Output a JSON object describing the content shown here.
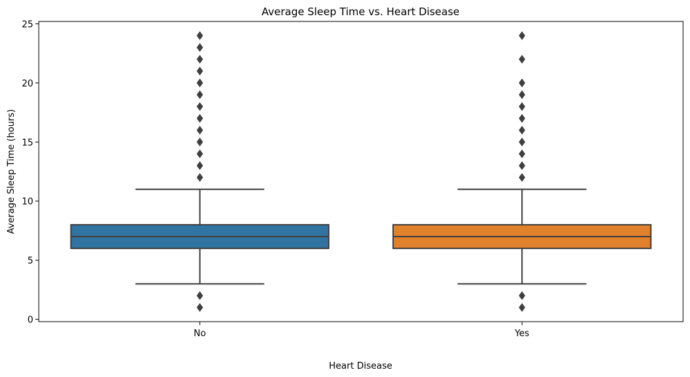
{
  "chart_data": {
    "type": "box",
    "title": "Average Sleep Time vs. Heart Disease",
    "xlabel": "Heart Disease",
    "ylabel": "Average Sleep Time (hours)",
    "ylim": [
      -0.2,
      25.2
    ],
    "yticks": [
      0,
      5,
      10,
      15,
      20,
      25
    ],
    "categories": [
      "No",
      "Yes"
    ],
    "grid": false,
    "boxes": [
      {
        "category": "No",
        "color": "#3274a1",
        "whisker_low": 3,
        "q1": 6,
        "median": 7,
        "q3": 8,
        "whisker_high": 11,
        "outliers": [
          1,
          2,
          12,
          13,
          14,
          15,
          16,
          17,
          18,
          19,
          20,
          21,
          22,
          23,
          24
        ]
      },
      {
        "category": "Yes",
        "color": "#e1812c",
        "whisker_low": 3,
        "q1": 6,
        "median": 7,
        "q3": 8,
        "whisker_high": 11,
        "outliers": [
          1,
          2,
          12,
          13,
          14,
          15,
          16,
          17,
          18,
          19,
          20,
          22,
          24
        ]
      }
    ]
  }
}
